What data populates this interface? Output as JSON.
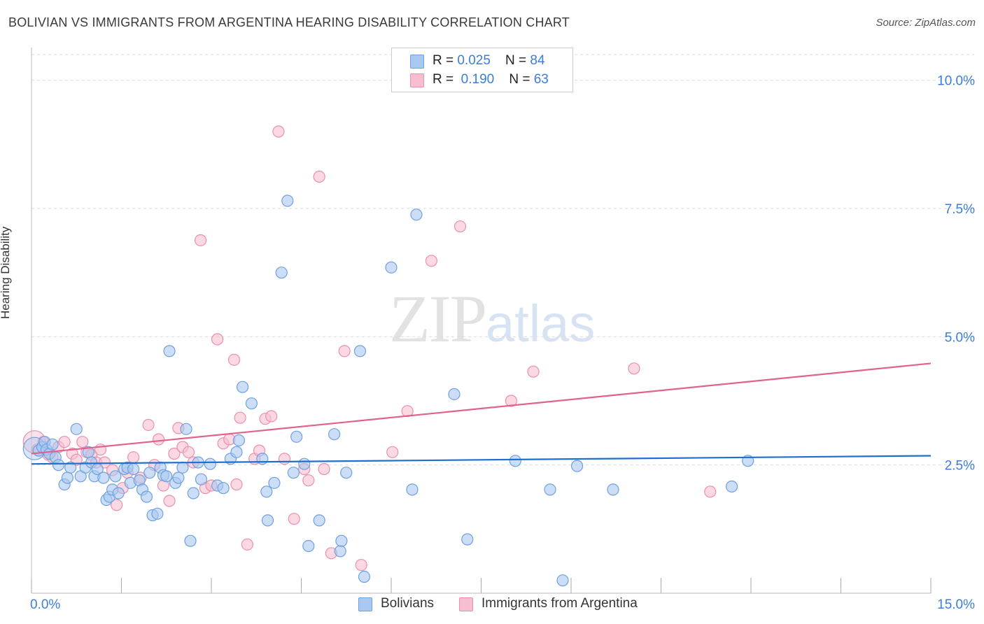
{
  "title": "BOLIVIAN VS IMMIGRANTS FROM ARGENTINA HEARING DISABILITY CORRELATION CHART",
  "source": "Source: ZipAtlas.com",
  "watermark": {
    "zip": "ZIP",
    "atlas": "atlas"
  },
  "legend": {
    "rows": [
      {
        "r_label": "R = ",
        "r_value": "0.025",
        "n_label": "N = ",
        "n_value": "84"
      },
      {
        "r_label": "R = ",
        "r_value": "0.190",
        "n_label": "N = ",
        "n_value": "63"
      }
    ]
  },
  "colors": {
    "blue_fill": "#a9c8f0",
    "blue_stroke": "#6fa0e0",
    "blue_line": "#1f6fd1",
    "pink_fill": "#f6bfd1",
    "pink_stroke": "#ea8fae",
    "pink_line": "#e0628d",
    "tick_label": "#3b7dd8",
    "grid": "#dcdcdc"
  },
  "chart_data": {
    "type": "scatter",
    "title": "BOLIVIAN VS IMMIGRANTS FROM ARGENTINA HEARING DISABILITY CORRELATION CHART",
    "xlabel": "",
    "ylabel": "Hearing Disability",
    "xlim": [
      0,
      15
    ],
    "ylim": [
      0,
      10.5
    ],
    "x_tick_labels": [
      {
        "value": 0,
        "label": "0.0%"
      },
      {
        "value": 15,
        "label": "15.0%"
      }
    ],
    "y_tick_labels": [
      {
        "value": 2.5,
        "label": "2.5%"
      },
      {
        "value": 5.0,
        "label": "5.0%"
      },
      {
        "value": 7.5,
        "label": "7.5%"
      },
      {
        "value": 10.0,
        "label": "10.0%"
      }
    ],
    "grid": "horizontal dashed",
    "legend_position": "top-center",
    "series": [
      {
        "name": "Bolivians",
        "r": 0.025,
        "n": 84,
        "trend": [
          [
            0,
            2.52
          ],
          [
            15,
            2.68
          ]
        ],
        "points": [
          [
            0.05,
            2.82
          ],
          [
            0.12,
            2.78
          ],
          [
            0.18,
            2.85
          ],
          [
            0.22,
            2.95
          ],
          [
            0.25,
            2.8
          ],
          [
            0.3,
            2.72
          ],
          [
            0.35,
            2.9
          ],
          [
            0.4,
            2.65
          ],
          [
            0.45,
            2.5
          ],
          [
            0.55,
            2.12
          ],
          [
            0.6,
            2.25
          ],
          [
            0.65,
            2.45
          ],
          [
            0.75,
            3.2
          ],
          [
            0.82,
            2.28
          ],
          [
            0.9,
            2.45
          ],
          [
            0.95,
            2.75
          ],
          [
            1.0,
            2.55
          ],
          [
            1.05,
            2.28
          ],
          [
            1.1,
            2.42
          ],
          [
            1.2,
            2.25
          ],
          [
            1.25,
            1.82
          ],
          [
            1.3,
            1.88
          ],
          [
            1.35,
            2.02
          ],
          [
            1.4,
            2.28
          ],
          [
            1.45,
            1.95
          ],
          [
            1.55,
            2.42
          ],
          [
            1.6,
            2.45
          ],
          [
            1.65,
            2.15
          ],
          [
            1.7,
            2.42
          ],
          [
            1.8,
            2.2
          ],
          [
            1.85,
            2.02
          ],
          [
            1.92,
            1.88
          ],
          [
            1.97,
            2.35
          ],
          [
            2.02,
            1.52
          ],
          [
            2.1,
            1.55
          ],
          [
            2.15,
            2.45
          ],
          [
            2.2,
            2.3
          ],
          [
            2.25,
            2.28
          ],
          [
            2.3,
            4.72
          ],
          [
            2.4,
            2.15
          ],
          [
            2.45,
            2.25
          ],
          [
            2.52,
            2.45
          ],
          [
            2.58,
            3.2
          ],
          [
            2.65,
            1.02
          ],
          [
            2.7,
            1.95
          ],
          [
            2.78,
            2.55
          ],
          [
            2.83,
            2.22
          ],
          [
            2.98,
            2.52
          ],
          [
            3.1,
            2.1
          ],
          [
            3.2,
            2.05
          ],
          [
            3.32,
            2.62
          ],
          [
            3.42,
            2.75
          ],
          [
            3.46,
            2.98
          ],
          [
            3.52,
            4.02
          ],
          [
            3.67,
            3.7
          ],
          [
            3.85,
            2.62
          ],
          [
            3.92,
            1.98
          ],
          [
            3.94,
            1.42
          ],
          [
            4.05,
            2.15
          ],
          [
            4.17,
            6.25
          ],
          [
            4.27,
            7.65
          ],
          [
            4.37,
            2.35
          ],
          [
            4.42,
            3.05
          ],
          [
            4.55,
            2.52
          ],
          [
            4.62,
            0.92
          ],
          [
            4.8,
            1.42
          ],
          [
            5.05,
            3.1
          ],
          [
            5.15,
            0.82
          ],
          [
            5.17,
            1.02
          ],
          [
            5.25,
            2.35
          ],
          [
            5.48,
            4.72
          ],
          [
            5.55,
            0.32
          ],
          [
            6.0,
            6.35
          ],
          [
            6.35,
            2.02
          ],
          [
            6.42,
            7.38
          ],
          [
            7.05,
            3.88
          ],
          [
            7.27,
            1.05
          ],
          [
            8.07,
            2.58
          ],
          [
            8.65,
            2.02
          ],
          [
            8.86,
            0.25
          ],
          [
            9.1,
            2.48
          ],
          [
            9.7,
            2.02
          ],
          [
            11.68,
            2.08
          ],
          [
            11.95,
            2.58
          ]
        ]
      },
      {
        "name": "Immigrants from Argentina",
        "r": 0.19,
        "n": 63,
        "trend": [
          [
            0,
            2.72
          ],
          [
            15,
            4.48
          ]
        ],
        "points": [
          [
            0.05,
            2.95
          ],
          [
            0.1,
            2.8
          ],
          [
            0.2,
            2.95
          ],
          [
            0.28,
            2.7
          ],
          [
            0.35,
            2.65
          ],
          [
            0.45,
            2.85
          ],
          [
            0.55,
            2.95
          ],
          [
            0.68,
            2.72
          ],
          [
            0.75,
            2.6
          ],
          [
            0.85,
            2.95
          ],
          [
            0.92,
            2.75
          ],
          [
            1.0,
            2.7
          ],
          [
            1.08,
            2.55
          ],
          [
            1.15,
            2.8
          ],
          [
            1.22,
            2.55
          ],
          [
            1.35,
            2.4
          ],
          [
            1.42,
            1.72
          ],
          [
            1.52,
            2.05
          ],
          [
            1.6,
            2.35
          ],
          [
            1.7,
            2.65
          ],
          [
            1.82,
            2.25
          ],
          [
            1.95,
            3.28
          ],
          [
            2.05,
            2.5
          ],
          [
            2.12,
            3.0
          ],
          [
            2.2,
            2.1
          ],
          [
            2.3,
            1.8
          ],
          [
            2.38,
            2.72
          ],
          [
            2.45,
            3.22
          ],
          [
            2.52,
            2.85
          ],
          [
            2.62,
            2.75
          ],
          [
            2.7,
            2.55
          ],
          [
            2.82,
            6.88
          ],
          [
            2.9,
            2.05
          ],
          [
            3.0,
            2.1
          ],
          [
            3.1,
            4.95
          ],
          [
            3.2,
            2.92
          ],
          [
            3.3,
            3.0
          ],
          [
            3.38,
            4.55
          ],
          [
            3.42,
            2.12
          ],
          [
            3.48,
            3.42
          ],
          [
            3.6,
            0.95
          ],
          [
            3.72,
            2.62
          ],
          [
            3.8,
            2.78
          ],
          [
            3.9,
            3.4
          ],
          [
            4.0,
            3.45
          ],
          [
            4.12,
            9.0
          ],
          [
            4.22,
            2.62
          ],
          [
            4.38,
            1.45
          ],
          [
            4.55,
            2.42
          ],
          [
            4.62,
            2.2
          ],
          [
            4.8,
            8.12
          ],
          [
            4.88,
            2.42
          ],
          [
            5.0,
            0.78
          ],
          [
            5.22,
            4.72
          ],
          [
            5.5,
            0.55
          ],
          [
            6.02,
            2.75
          ],
          [
            6.27,
            3.55
          ],
          [
            6.67,
            6.48
          ],
          [
            7.15,
            7.15
          ],
          [
            8.0,
            3.75
          ],
          [
            8.37,
            4.32
          ],
          [
            10.05,
            4.38
          ],
          [
            11.32,
            1.98
          ]
        ]
      }
    ]
  },
  "bottom_legend": [
    {
      "label": "Bolivians"
    },
    {
      "label": "Immigrants from Argentina"
    }
  ]
}
